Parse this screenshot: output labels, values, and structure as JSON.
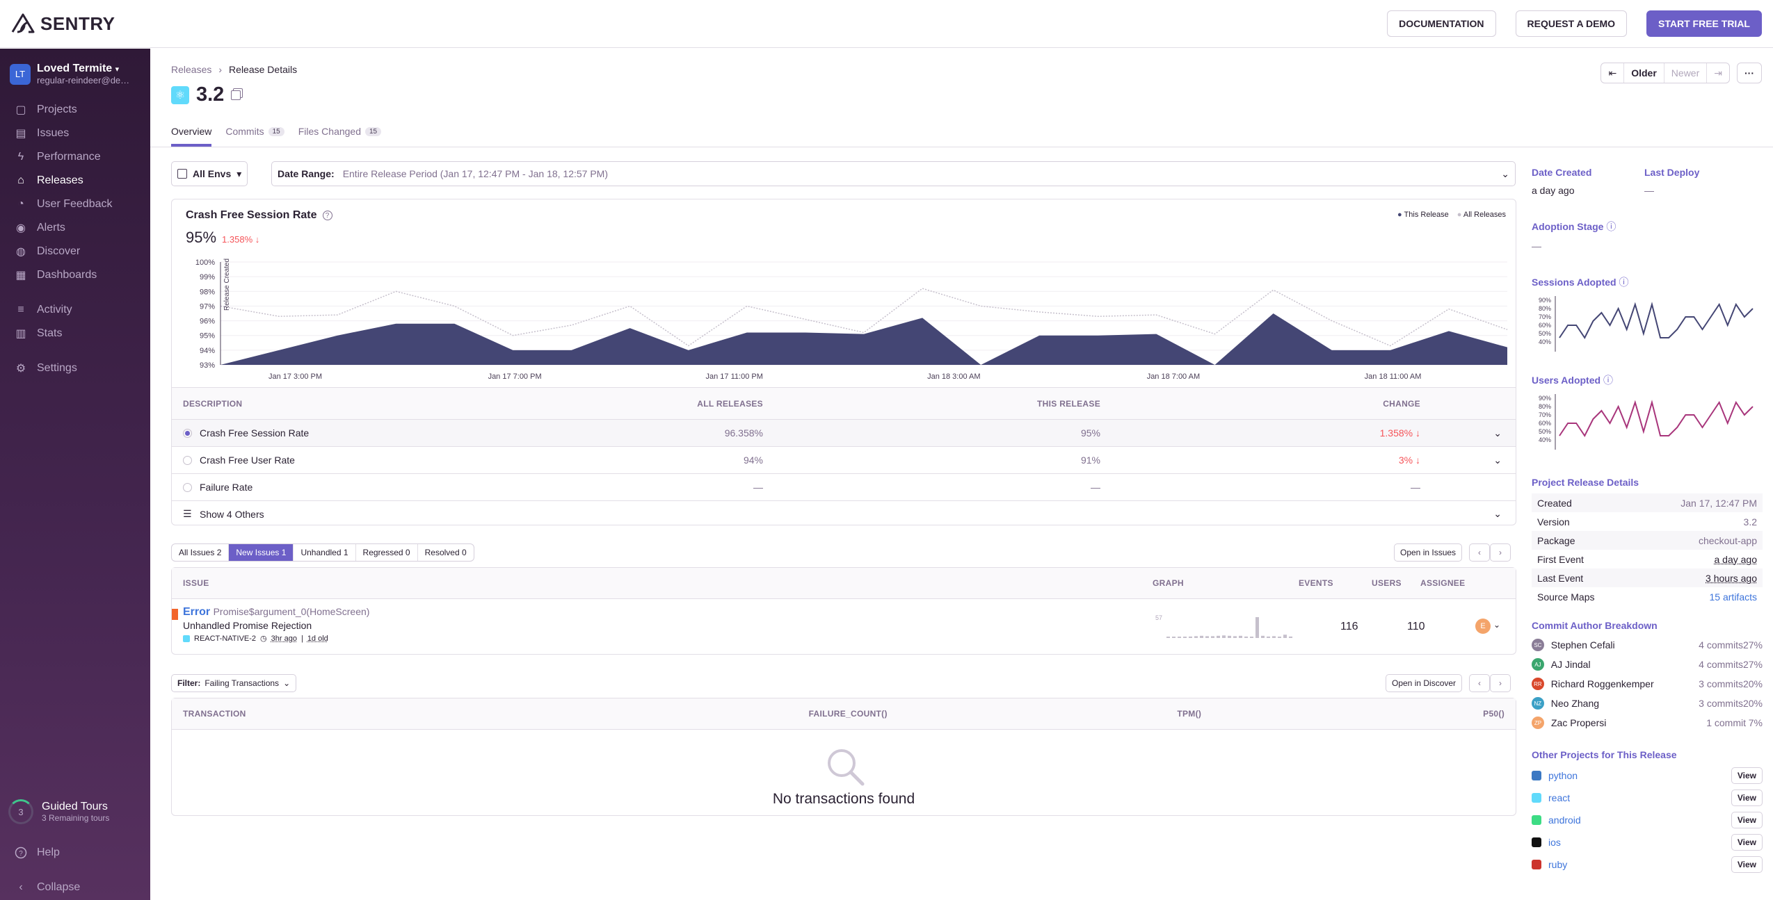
{
  "topbar": {
    "logo": "SENTRY",
    "documentation": "DOCUMENTATION",
    "request_demo": "REQUEST A DEMO",
    "start_trial": "START FREE TRIAL"
  },
  "sidebar": {
    "org_initials": "LT",
    "org_name": "Loved Termite",
    "org_sub": "regular-reindeer@demo.getsentry.com",
    "items": [
      {
        "label": "Projects",
        "icon": "projects-icon"
      },
      {
        "label": "Issues",
        "icon": "issues-icon"
      },
      {
        "label": "Performance",
        "icon": "lightning-icon"
      },
      {
        "label": "Releases",
        "icon": "releases-icon"
      },
      {
        "label": "User Feedback",
        "icon": "feedback-icon"
      },
      {
        "label": "Alerts",
        "icon": "siren-icon"
      },
      {
        "label": "Discover",
        "icon": "telescope-icon"
      },
      {
        "label": "Dashboards",
        "icon": "dashboard-icon"
      },
      {
        "label": "Activity",
        "icon": "activity-icon"
      },
      {
        "label": "Stats",
        "icon": "stats-icon"
      },
      {
        "label": "Settings",
        "icon": "gear-icon"
      }
    ],
    "guided_count": "3",
    "guided_title": "Guided Tours",
    "guided_sub": "3 Remaining tours",
    "help": "Help",
    "collapse": "Collapse"
  },
  "header": {
    "breadcrumb": [
      "Releases",
      "Release Details"
    ],
    "version": "3.2",
    "tabs": [
      {
        "label": "Overview"
      },
      {
        "label": "Commits",
        "badge": "15"
      },
      {
        "label": "Files Changed",
        "badge": "15"
      }
    ],
    "pager": {
      "older": "Older",
      "newer": "Newer"
    }
  },
  "filters": {
    "env": "All Envs",
    "date_label": "Date Range:",
    "date_value": "Entire Release Period (Jan 17, 12:47 PM - Jan 18, 12:57 PM)"
  },
  "chart_card": {
    "title": "Crash Free Session Rate",
    "big": "95%",
    "change": "1.358%",
    "legend_this": "This Release",
    "legend_all": "All Releases",
    "release_marker": "Release Created"
  },
  "chart_data": {
    "type": "area",
    "title": "Crash Free Session Rate",
    "ylim": [
      93,
      100
    ],
    "yticks": [
      "100%",
      "99%",
      "98%",
      "97%",
      "96%",
      "95%",
      "94%",
      "93%"
    ],
    "xticks": [
      "Jan 17 3:00 PM",
      "Jan 17 7:00 PM",
      "Jan 17 11:00 PM",
      "Jan 18 3:00 AM",
      "Jan 18 7:00 AM",
      "Jan 18 11:00 AM"
    ],
    "series": [
      {
        "name": "This Release",
        "color": "#444674",
        "values": [
          93,
          94,
          95,
          95.8,
          95.8,
          94,
          94,
          95.5,
          94,
          95.2,
          95.2,
          95.1,
          96.2,
          93,
          95,
          95,
          95.1,
          93,
          96.5,
          94,
          94,
          95.3,
          94.2
        ]
      },
      {
        "name": "All Releases",
        "color": "#c6c0cc",
        "values": [
          97,
          96.3,
          96.4,
          98,
          97,
          95,
          95.7,
          97,
          94.3,
          97,
          96.1,
          95.2,
          98.2,
          97,
          96.6,
          96.3,
          96.4,
          95.1,
          98.1,
          96,
          94.3,
          96.8,
          95.4
        ]
      }
    ]
  },
  "stats_table": {
    "headers": [
      "DESCRIPTION",
      "ALL RELEASES",
      "THIS RELEASE",
      "CHANGE"
    ],
    "rows": [
      {
        "desc": "Crash Free Session Rate",
        "all": "96.358%",
        "this": "95%",
        "change": "1.358%"
      },
      {
        "desc": "Crash Free User Rate",
        "all": "94%",
        "this": "91%",
        "change": "3%"
      },
      {
        "desc": "Failure Rate",
        "all": "—",
        "this": "—",
        "change": "—"
      }
    ],
    "show_others": "Show 4 Others"
  },
  "issue_filters": [
    {
      "label": "All Issues",
      "count": "2"
    },
    {
      "label": "New Issues",
      "count": "1"
    },
    {
      "label": "Unhandled",
      "count": "1"
    },
    {
      "label": "Regressed",
      "count": "0"
    },
    {
      "label": "Resolved",
      "count": "0"
    }
  ],
  "open_issues": "Open in Issues",
  "issues_table": {
    "headers": {
      "issue": "ISSUE",
      "graph": "GRAPH",
      "events": "EVENTS",
      "users": "USERS",
      "assignee": "ASSIGNEE"
    },
    "row": {
      "type": "Error",
      "culprit": "Promise$argument_0(HomeScreen)",
      "message": "Unhandled Promise Rejection",
      "project": "REACT-NATIVE-2",
      "time": "3hr ago",
      "age": "1d old",
      "events": "116",
      "users": "110",
      "assignee": "E",
      "graph_max": "57",
      "graph_values": [
        2,
        3,
        2,
        3,
        4,
        5,
        6,
        5,
        5,
        6,
        7,
        6,
        5,
        6,
        4,
        3,
        57,
        6,
        4,
        5,
        3,
        9,
        4
      ]
    }
  },
  "txn": {
    "filter_label": "Filter:",
    "filter_value": "Failing Transactions",
    "open_discover": "Open in Discover",
    "headers": [
      "TRANSACTION",
      "FAILURE_COUNT()",
      "TPM()",
      "P50()"
    ],
    "empty": "No transactions found"
  },
  "side": {
    "date_created": "Date Created",
    "date_created_val": "a day ago",
    "last_deploy": "Last Deploy",
    "last_deploy_val": "—",
    "adoption_stage": "Adoption Stage",
    "adoption_stage_val": "—",
    "sessions_adopted": "Sessions Adopted",
    "users_adopted": "Users Adopted",
    "spark_ticks": [
      "90%",
      "80%",
      "70%",
      "60%",
      "50%",
      "40%"
    ],
    "sessions_spark": [
      45,
      60,
      60,
      45,
      65,
      75,
      60,
      80,
      55,
      85,
      50,
      85,
      45,
      45,
      55,
      70,
      70,
      55,
      70,
      85,
      60,
      85,
      70,
      80
    ],
    "users_spark": [
      45,
      60,
      60,
      45,
      65,
      75,
      60,
      80,
      55,
      85,
      50,
      85,
      45,
      45,
      55,
      70,
      70,
      55,
      70,
      85,
      60,
      85,
      70,
      80
    ],
    "project_details_title": "Project Release Details",
    "details": [
      {
        "k": "Created",
        "v": "Jan 17, 12:47 PM"
      },
      {
        "k": "Version",
        "v": "3.2"
      },
      {
        "k": "Package",
        "v": "checkout-app"
      },
      {
        "k": "First Event",
        "v": "a day ago"
      },
      {
        "k": "Last Event",
        "v": "3 hours ago"
      },
      {
        "k": "Source Maps",
        "v": "15 artifacts"
      }
    ],
    "commit_title": "Commit Author Breakdown",
    "authors": [
      {
        "initials": "SC",
        "name": "Stephen Cefali",
        "commits": "4 commits",
        "pct": "27%",
        "color": "#8a7d97"
      },
      {
        "initials": "AJ",
        "name": "AJ Jindal",
        "commits": "4 commits",
        "pct": "27%",
        "color": "#3aa66e"
      },
      {
        "initials": "RR",
        "name": "Richard Roggenkemper",
        "commits": "3 commits",
        "pct": "20%",
        "color": "#d9482b"
      },
      {
        "initials": "NZ",
        "name": "Neo Zhang",
        "commits": "3 commits",
        "pct": "20%",
        "color": "#3ba0c6"
      },
      {
        "initials": "ZP",
        "name": "Zac Propersi",
        "commits": "1 commit",
        "pct": "7%",
        "color": "#f4a46a"
      }
    ],
    "other_title": "Other Projects for This Release",
    "projects": [
      {
        "name": "python",
        "color": "#3b78c3"
      },
      {
        "name": "react",
        "color": "#61dafb"
      },
      {
        "name": "android",
        "color": "#3ddc84"
      },
      {
        "name": "ios",
        "color": "#111111"
      },
      {
        "name": "ruby",
        "color": "#cc342d"
      }
    ],
    "view": "View"
  }
}
